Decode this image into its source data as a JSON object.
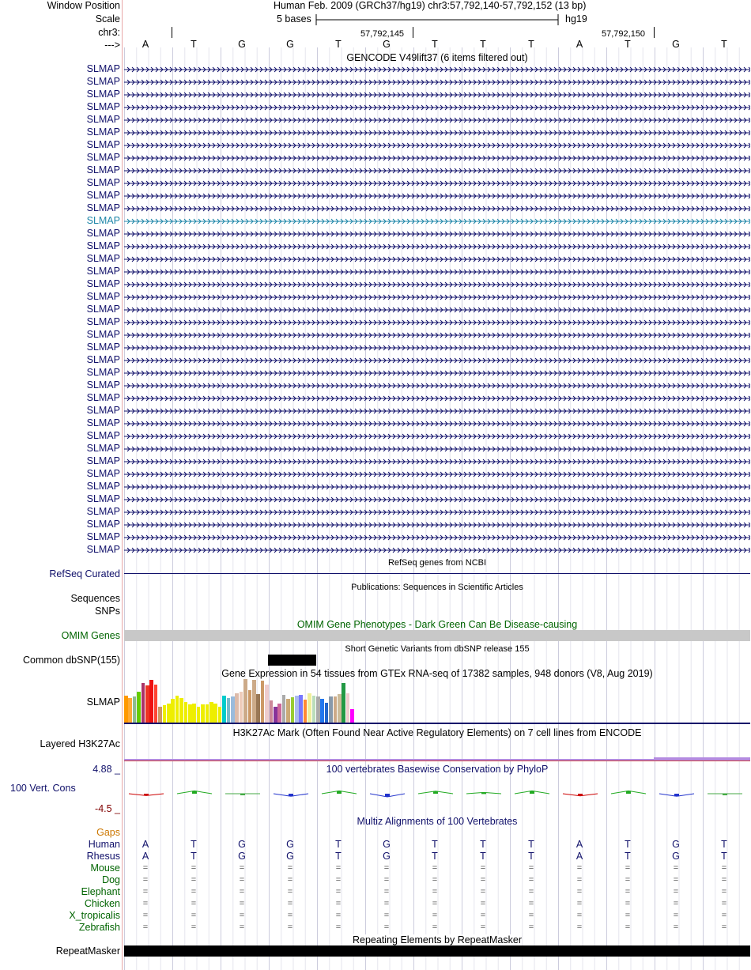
{
  "header": {
    "window_position_label": "Window Position",
    "scale_label": "Scale",
    "chr_label": "chr3:",
    "strand_label": "--->",
    "assembly_title": "Human Feb. 2009 (GRCh37/hg19)   chr3:57,792,140-57,792,152 (13 bp)",
    "scale_text": "5 bases",
    "scale_db": "hg19",
    "pos1": "57,792,145",
    "pos2": "57,792,150"
  },
  "sequence": [
    "A",
    "T",
    "G",
    "G",
    "T",
    "G",
    "T",
    "T",
    "T",
    "A",
    "T",
    "G",
    "T"
  ],
  "gencode": {
    "title": "GENCODE V49lift37 (6 items filtered out)",
    "gene_name": "SLMAP",
    "row_count": 39,
    "highlight_index": 12,
    "label_color": "#10106a",
    "highlight_color": "#1d86a8"
  },
  "refseq": {
    "label": "RefSeq Curated",
    "title": "RefSeq genes from NCBI"
  },
  "publications": {
    "title": "Publications: Sequences in Scientific Articles",
    "label1": "Sequences",
    "label2": "SNPs"
  },
  "omim": {
    "title": "OMIM Gene Phenotypes - Dark Green Can Be Disease-causing",
    "label": "OMIM Genes",
    "label_color": "#006400"
  },
  "dbsnp": {
    "title": "Short Genetic Variants from dbSNP release 155",
    "label": "Common dbSNP(155)"
  },
  "gtex": {
    "title": "Gene Expression in 54 tissues from GTEx RNA-seq of 17382 samples, 948 donors (V8, Aug 2019)",
    "label": "SLMAP",
    "values": [
      0.62,
      0.56,
      0.6,
      0.7,
      0.91,
      0.86,
      0.98,
      0.88,
      0.37,
      0.4,
      0.44,
      0.54,
      0.61,
      0.56,
      0.47,
      0.42,
      0.43,
      0.37,
      0.41,
      0.41,
      0.48,
      0.44,
      0.36,
      0.61,
      0.56,
      0.6,
      0.67,
      0.7,
      1.0,
      0.75,
      0.98,
      0.66,
      0.96,
      0.88,
      0.51,
      0.37,
      0.44,
      0.63,
      0.54,
      0.58,
      0.61,
      0.63,
      0.52,
      0.67,
      0.62,
      0.6,
      0.55,
      0.46,
      0.6,
      0.6,
      0.66,
      0.9,
      0.67,
      0.3
    ],
    "colors": [
      "#ff9900",
      "#ffaa33",
      "#8fbc8f",
      "#66cc00",
      "#aa3366",
      "#ee3322",
      "#ee1111",
      "#ff4433",
      "#cc9966",
      "#eeee00",
      "#eeee00",
      "#eeee00",
      "#eeee00",
      "#eeee00",
      "#eeee00",
      "#eeee00",
      "#eeee00",
      "#eeee00",
      "#eeee00",
      "#eeee00",
      "#eeee00",
      "#eeee00",
      "#eeee00",
      "#00cccc",
      "#77bbcc",
      "#99bbdd",
      "#ddbbaa",
      "#eeccbb",
      "#ccaa88",
      "#cc9966",
      "#ccaa88",
      "#997755",
      "#cc9966",
      "#eecccc",
      "#cc8899",
      "#883399",
      "#cc6699",
      "#aaaaaa",
      "#ccaa77",
      "#99cc33",
      "#aabbee",
      "#7777ff",
      "#ff8833",
      "#eeee99",
      "#bbddbb",
      "#aaaaaa",
      "#2277ee",
      "#2266cc",
      "#8899aa",
      "#ccaa88",
      "#ccbb99",
      "#229944",
      "#eecccc",
      "#ff00ff"
    ]
  },
  "h3k27ac": {
    "title": "H3K27Ac Mark (Often Found Near Active Regulatory Elements) on 7 cell lines from ENCODE",
    "label": "Layered H3K27Ac"
  },
  "phylop": {
    "title": "100 vertebrates Basewise Conservation by PhyloP",
    "label": "100 Vert. Cons",
    "max_label": "4.88 _",
    "min_label": "-4.5 _",
    "scores": [
      -0.6,
      0.9,
      0.0,
      -0.8,
      0.9,
      -1.0,
      0.8,
      0.4,
      0.9,
      -0.7,
      0.9,
      -0.8,
      0.0
    ]
  },
  "multiz": {
    "title": "Multiz Alignments of 100 Vertebrates",
    "gaps_label": "Gaps",
    "human_label": "Human",
    "rhesus_label": "Rhesus",
    "eq_symbol": "=",
    "other_species": [
      "Mouse",
      "Dog",
      "Elephant",
      "Chicken",
      "X_tropicalis",
      "Zebrafish"
    ]
  },
  "repeatmasker": {
    "title": "Repeating Elements by RepeatMasker",
    "label": "RepeatMasker"
  }
}
